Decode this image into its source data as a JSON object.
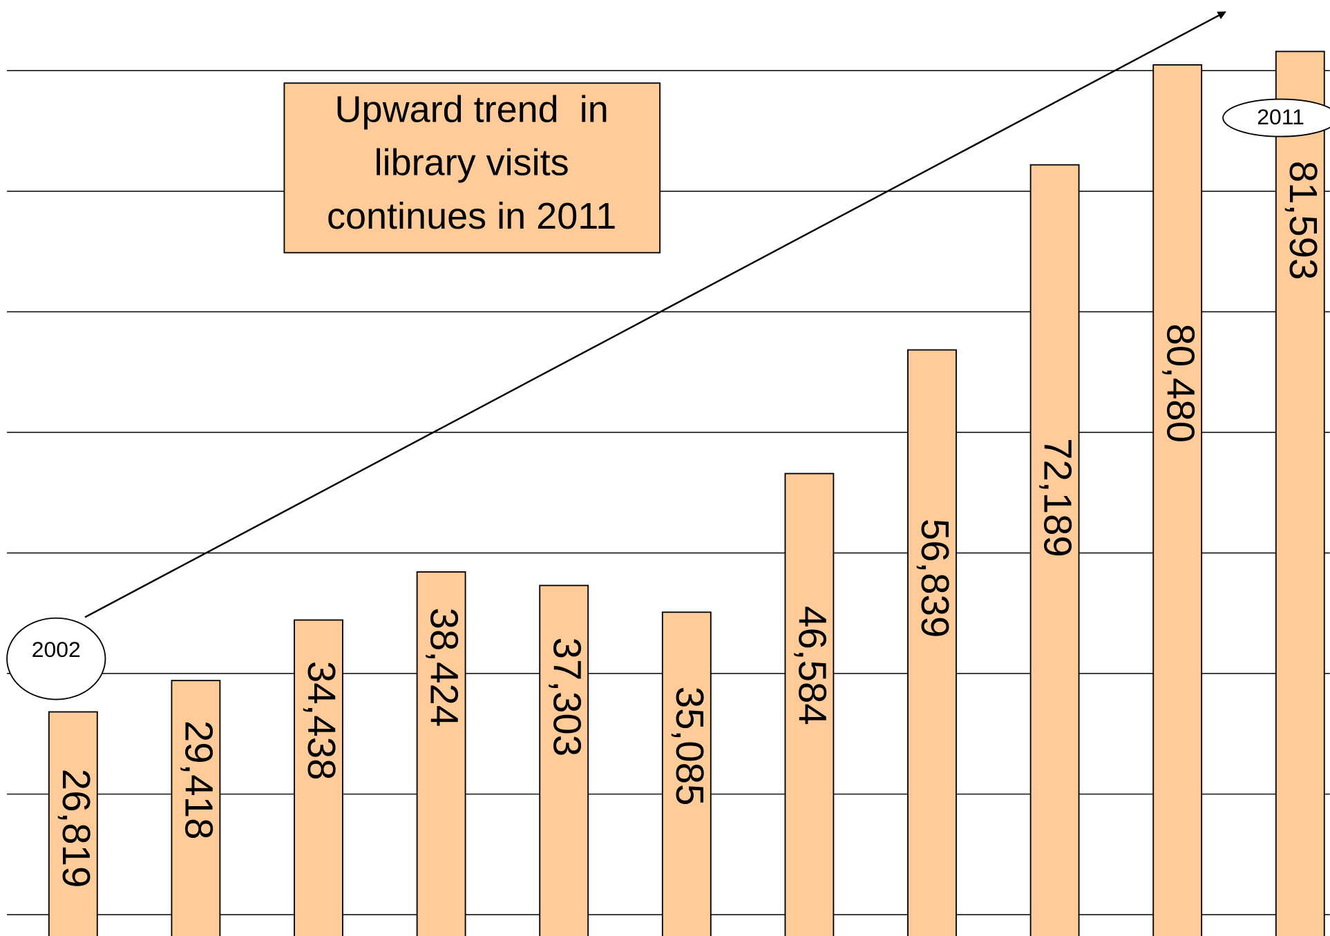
{
  "chart_data": {
    "type": "bar",
    "annotations": {
      "text_box": [
        "Upward trend  in",
        "library visits",
        "continues in 2011"
      ],
      "start_label": "2002",
      "end_label": "2011"
    },
    "values": [
      26819,
      29418,
      34438,
      38424,
      37303,
      35085,
      46584,
      56839,
      72189,
      80480,
      81593
    ],
    "value_labels": [
      "26,819",
      "29,418",
      "34,438",
      "38,424",
      "37,303",
      "35,085",
      "46,584",
      "56,839",
      "72,189",
      "80,480",
      "81,593"
    ],
    "color": "#ffcc99",
    "ylim": [
      8230,
      85860
    ],
    "yticks": [
      10000,
      20000,
      30000,
      40000,
      50000,
      60000,
      70000,
      80000
    ],
    "grid": true
  }
}
